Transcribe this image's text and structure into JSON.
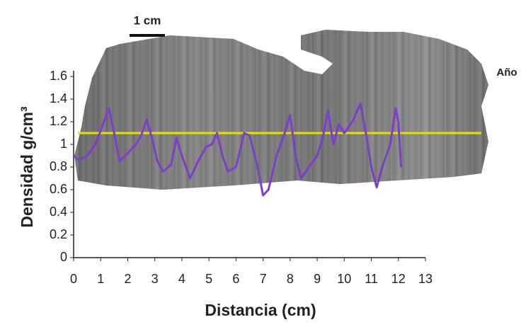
{
  "chart_data": {
    "type": "line",
    "ylabel": "Densidad g/cm³",
    "xlabel": "Distancia (cm)",
    "scale_bar_label": "1 cm",
    "side_label": "Año",
    "x": [
      0,
      0.2,
      0.5,
      0.8,
      1.0,
      1.3,
      1.5,
      1.7,
      2.0,
      2.3,
      2.5,
      2.7,
      2.9,
      3.1,
      3.3,
      3.6,
      3.8,
      4.0,
      4.3,
      4.6,
      4.9,
      5.1,
      5.3,
      5.5,
      5.7,
      6.0,
      6.3,
      6.5,
      6.8,
      7.0,
      7.2,
      7.5,
      7.8,
      8.0,
      8.2,
      8.4,
      8.7,
      9.0,
      9.2,
      9.4,
      9.6,
      9.8,
      10.0,
      10.3,
      10.6,
      10.8,
      11.0,
      11.2,
      11.4,
      11.7,
      11.9,
      12.0,
      12.1
    ],
    "series": [
      {
        "color": "#7d3fc8",
        "values": [
          0.9,
          0.86,
          0.9,
          1.0,
          1.12,
          1.32,
          1.1,
          0.85,
          0.92,
          1.0,
          1.08,
          1.22,
          1.05,
          0.85,
          0.76,
          0.82,
          1.06,
          0.9,
          0.7,
          0.85,
          0.98,
          1.0,
          1.1,
          0.9,
          0.76,
          0.8,
          1.1,
          1.08,
          0.8,
          0.55,
          0.6,
          0.9,
          1.1,
          1.26,
          0.9,
          0.7,
          0.8,
          0.9,
          1.05,
          1.3,
          1.0,
          1.18,
          1.1,
          1.2,
          1.36,
          1.1,
          0.8,
          0.62,
          0.8,
          1.0,
          1.32,
          1.2,
          0.8
        ]
      }
    ],
    "reference_line": {
      "value": 1.1,
      "color": "#e6e000"
    },
    "xlim": [
      0,
      13
    ],
    "xticks": [
      0,
      1,
      2,
      3,
      4,
      5,
      6,
      7,
      8,
      9,
      10,
      11,
      12,
      13
    ],
    "ylim": [
      0,
      1.6
    ],
    "yticks": [
      0,
      0.2,
      0.4,
      0.6,
      0.8,
      1,
      1.2,
      1.4,
      1.6
    ]
  }
}
